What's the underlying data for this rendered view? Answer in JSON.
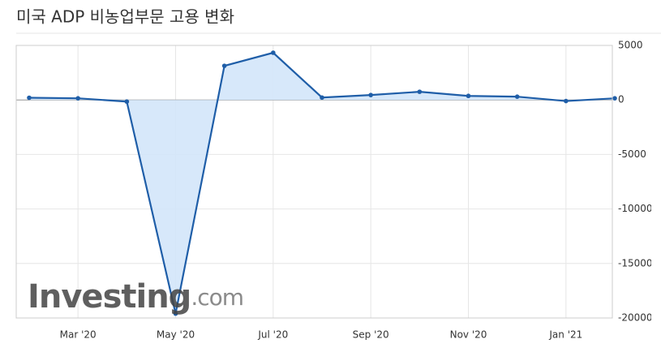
{
  "chart_data": {
    "type": "area",
    "title": "미국 ADP 비농업부문 고용 변화",
    "watermark": "Investing",
    "watermark_suffix": ".com",
    "categories": [
      null,
      "Mar '20",
      null,
      "May '20",
      null,
      "Jul '20",
      null,
      "Sep '20",
      null,
      "Nov '20",
      null,
      "Jan '21",
      null
    ],
    "series": [
      {
        "name": "ADP",
        "color": "#1f5ea8",
        "fill": "#d3e6fa",
        "values": [
          200,
          150,
          -150,
          -19600,
          3130,
          4330,
          220,
          450,
          750,
          370,
          300,
          -100,
          150
        ]
      }
    ],
    "ylim": [
      -20000,
      5000
    ],
    "yticks": [
      5000,
      0,
      -5000,
      -10000,
      -15000,
      -20000
    ],
    "grid": true
  }
}
